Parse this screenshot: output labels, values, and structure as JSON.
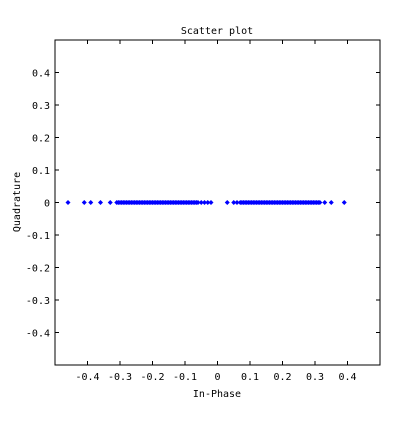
{
  "chart_data": {
    "type": "scatter",
    "title": "Scatter plot",
    "xlabel": "In-Phase",
    "ylabel": "Quadrature",
    "xlim": [
      -0.5,
      0.5
    ],
    "ylim": [
      -0.5,
      0.5
    ],
    "xticks": [
      -0.4,
      -0.3,
      -0.2,
      -0.1,
      0,
      0.1,
      0.2,
      0.3,
      0.4
    ],
    "xtick_labels": [
      "-0.4",
      "-0.3",
      "-0.2",
      "-0.1",
      "0",
      "0.1",
      "0.2",
      "0.3",
      "0.4"
    ],
    "yticks": [
      0.4,
      0.3,
      0.2,
      0.1,
      0,
      -0.1,
      -0.2,
      -0.3,
      -0.4
    ],
    "ytick_labels": [
      "0.4",
      "0.3",
      "0.2",
      "0.1",
      "0",
      "-0.1",
      "-0.2",
      "-0.3",
      "-0.4"
    ],
    "grid": false,
    "marker_color": "#0000ff",
    "marker": "diamond",
    "x": [
      -0.46,
      -0.41,
      -0.39,
      -0.36,
      -0.33,
      -0.31,
      -0.305,
      -0.3,
      -0.295,
      -0.29,
      -0.285,
      -0.28,
      -0.275,
      -0.27,
      -0.265,
      -0.26,
      -0.255,
      -0.25,
      -0.245,
      -0.24,
      -0.235,
      -0.23,
      -0.225,
      -0.22,
      -0.215,
      -0.21,
      -0.205,
      -0.2,
      -0.195,
      -0.19,
      -0.185,
      -0.18,
      -0.175,
      -0.17,
      -0.165,
      -0.16,
      -0.155,
      -0.15,
      -0.145,
      -0.14,
      -0.135,
      -0.13,
      -0.125,
      -0.12,
      -0.115,
      -0.11,
      -0.105,
      -0.1,
      -0.095,
      -0.09,
      -0.085,
      -0.08,
      -0.075,
      -0.07,
      -0.065,
      -0.06,
      -0.05,
      -0.04,
      -0.03,
      -0.02,
      0.03,
      0.05,
      0.06,
      0.07,
      0.075,
      0.08,
      0.085,
      0.09,
      0.095,
      0.1,
      0.105,
      0.11,
      0.115,
      0.12,
      0.125,
      0.13,
      0.135,
      0.14,
      0.145,
      0.15,
      0.155,
      0.16,
      0.165,
      0.17,
      0.175,
      0.18,
      0.185,
      0.19,
      0.195,
      0.2,
      0.205,
      0.21,
      0.215,
      0.22,
      0.225,
      0.23,
      0.235,
      0.24,
      0.245,
      0.25,
      0.255,
      0.26,
      0.265,
      0.27,
      0.275,
      0.28,
      0.285,
      0.29,
      0.295,
      0.3,
      0.305,
      0.31,
      0.315,
      0.33,
      0.35,
      0.39
    ],
    "y_constant": 0
  }
}
